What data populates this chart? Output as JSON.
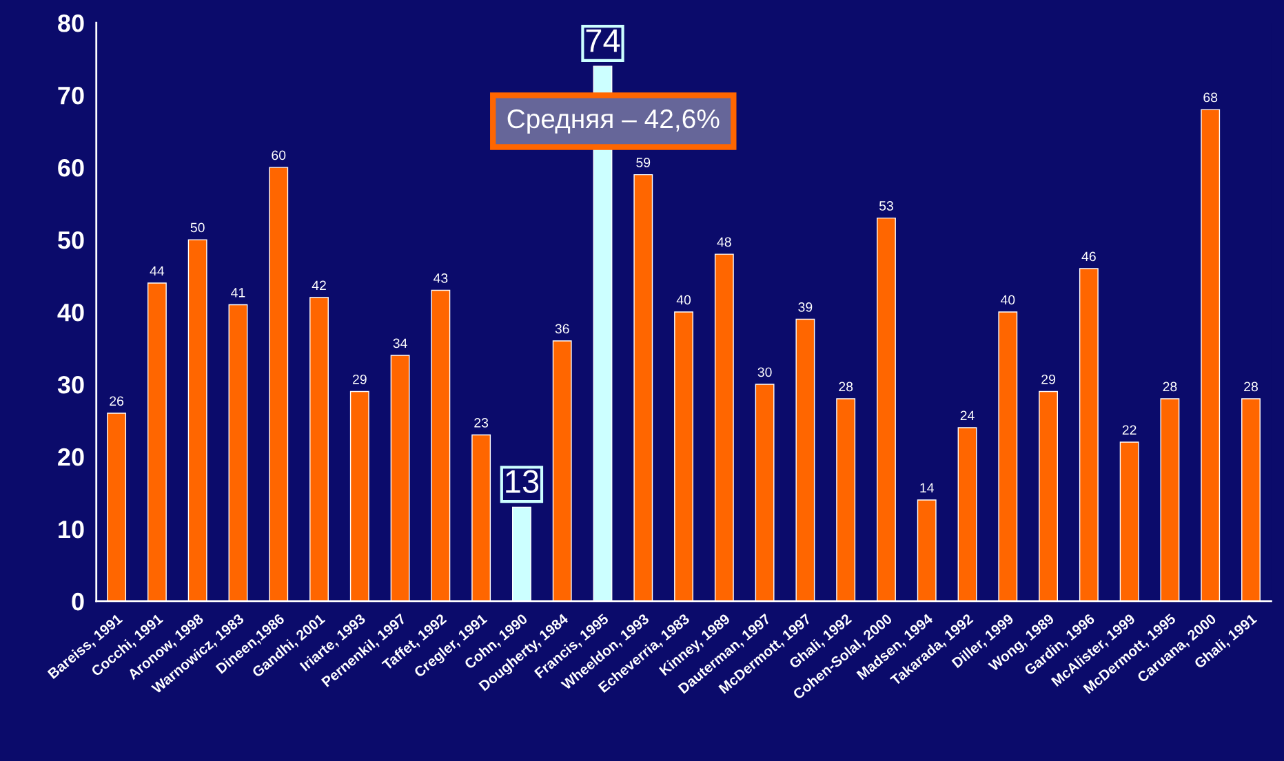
{
  "chart_data": {
    "type": "bar",
    "categories": [
      "Bareiss, 1991",
      "Cocchi, 1991",
      "Aronow, 1998",
      "Warnowicz, 1983",
      "Dineen,1986",
      "Gandhi, 2001",
      "Iriarte, 1993",
      "Pernenkil, 1997",
      "Taffet, 1992",
      "Cregler, 1991",
      "Cohn, 1990",
      "Dougherty, 1984",
      "Francis, 1995",
      "Wheeldon, 1993",
      "Echeverria, 1983",
      "Kinney, 1989",
      "Dauterman, 1997",
      "McDermott, 1997",
      "Ghali, 1992",
      "Cohen-Solal, 2000",
      "Madsen, 1994",
      "Takarada, 1992",
      "Diller, 1999",
      "Wong, 1989",
      "Gardin, 1996",
      "McAlister, 1999",
      "McDermott, 1995",
      "Caruana, 2000",
      "Ghali, 1991"
    ],
    "values": [
      26,
      44,
      50,
      41,
      60,
      42,
      29,
      34,
      43,
      23,
      13,
      36,
      74,
      59,
      40,
      48,
      30,
      39,
      28,
      53,
      14,
      24,
      40,
      29,
      46,
      22,
      28,
      68,
      28
    ],
    "colors": [
      "#ff6600",
      "#ff6600",
      "#ff6600",
      "#ff6600",
      "#ff6600",
      "#ff6600",
      "#ff6600",
      "#ff6600",
      "#ff6600",
      "#ff6600",
      "#ccffff",
      "#ff6600",
      "#ccffff",
      "#ff6600",
      "#ff6600",
      "#ff6600",
      "#ff6600",
      "#ff6600",
      "#ff6600",
      "#ff6600",
      "#ff6600",
      "#ff6600",
      "#ff6600",
      "#ff6600",
      "#ff6600",
      "#ff6600",
      "#ff6600",
      "#ff6600",
      "#ff6600"
    ],
    "data_labels": true,
    "ylim": [
      0,
      80
    ],
    "yticks": [
      0,
      10,
      20,
      30,
      40,
      50,
      60,
      70,
      80
    ],
    "annotations": [
      "Средняя – 42,6%"
    ]
  }
}
